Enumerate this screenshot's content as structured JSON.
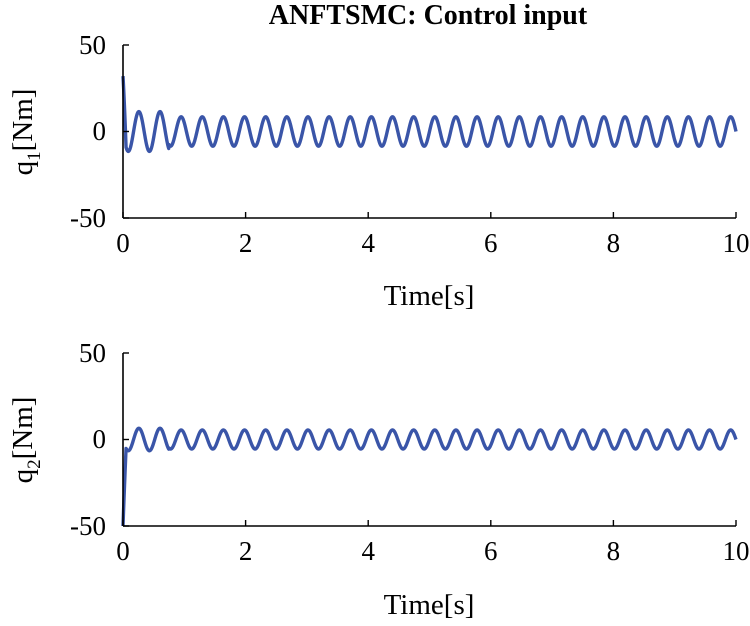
{
  "chart_data": [
    {
      "type": "line",
      "title": "ANFTSMC: Control input",
      "xlabel": "Time[s]",
      "ylabel_main": "q",
      "ylabel_sub": "1",
      "ylabel_unit": "[Nm]",
      "xlim": [
        0,
        10
      ],
      "ylim": [
        -50,
        50
      ],
      "xticks": [
        "0",
        "2",
        "4",
        "6",
        "8",
        "10"
      ],
      "yticks": [
        "50",
        "0",
        "-50"
      ],
      "grid": false,
      "series_color": "#3a55a8",
      "signal": {
        "initial_value": 32,
        "steady_amplitude": 8.5,
        "transient_amplitude": 11.5,
        "frequency_hz": 2.9,
        "transient_end_s": 0.75
      }
    },
    {
      "type": "line",
      "title": "",
      "xlabel": "Time[s]",
      "ylabel_main": "q",
      "ylabel_sub": "2",
      "ylabel_unit": "[Nm]",
      "xlim": [
        0,
        10
      ],
      "ylim": [
        -50,
        50
      ],
      "xticks": [
        "0",
        "2",
        "4",
        "6",
        "8",
        "10"
      ],
      "yticks": [
        "50",
        "0",
        "-50"
      ],
      "grid": false,
      "series_color": "#3a55a8",
      "signal": {
        "initial_value": -50,
        "steady_amplitude": 5.5,
        "transient_amplitude": 6.5,
        "frequency_hz": 2.9,
        "transient_end_s": 0.75
      }
    }
  ]
}
